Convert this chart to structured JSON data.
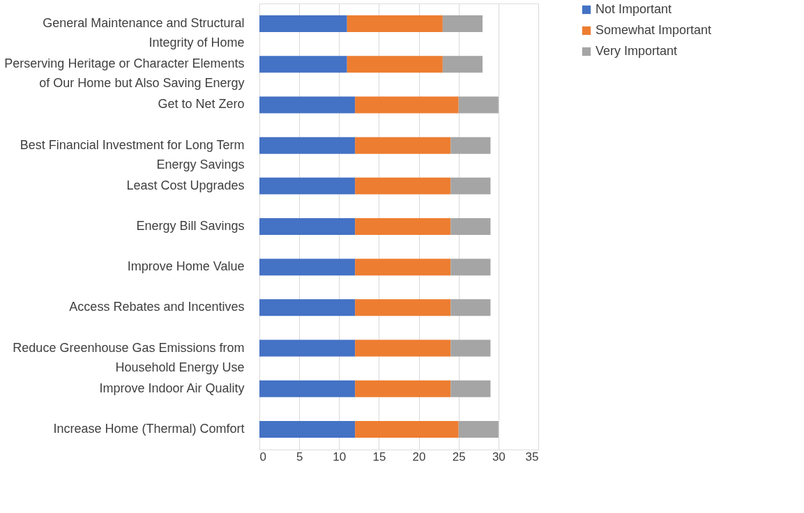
{
  "chart_data": {
    "type": "bar",
    "orientation": "horizontal",
    "stacked": true,
    "categories": [
      "General Maintenance and Structural Integrity of Home",
      "Perserving Heritage or Character Elements of Our Home but Also Saving Energy",
      "Get to Net Zero",
      "Best Financial Investment for Long Term Energy Savings",
      "Least Cost Upgrades",
      "Energy Bill Savings",
      "Improve Home Value",
      "Access Rebates and Incentives",
      "Reduce Greenhouse Gas Emissions from Household Energy Use",
      "Improve Indoor Air Quality",
      "Increase Home (Thermal) Comfort"
    ],
    "series": [
      {
        "name": "Not Important",
        "color": "#4472c4",
        "values": [
          11,
          11,
          12,
          12,
          12,
          12,
          12,
          12,
          12,
          12,
          12
        ]
      },
      {
        "name": "Somewhat Important",
        "color": "#ed7d31",
        "values": [
          12,
          12,
          13,
          12,
          12,
          12,
          12,
          12,
          12,
          12,
          13
        ]
      },
      {
        "name": "Very Important",
        "color": "#a5a5a5",
        "values": [
          5,
          5,
          5,
          5,
          5,
          5,
          5,
          5,
          5,
          5,
          5
        ]
      }
    ],
    "xlim": [
      0,
      35
    ],
    "xticks": [
      0,
      5,
      10,
      15,
      20,
      25,
      30,
      35
    ],
    "grid": "x",
    "legend": "right"
  }
}
